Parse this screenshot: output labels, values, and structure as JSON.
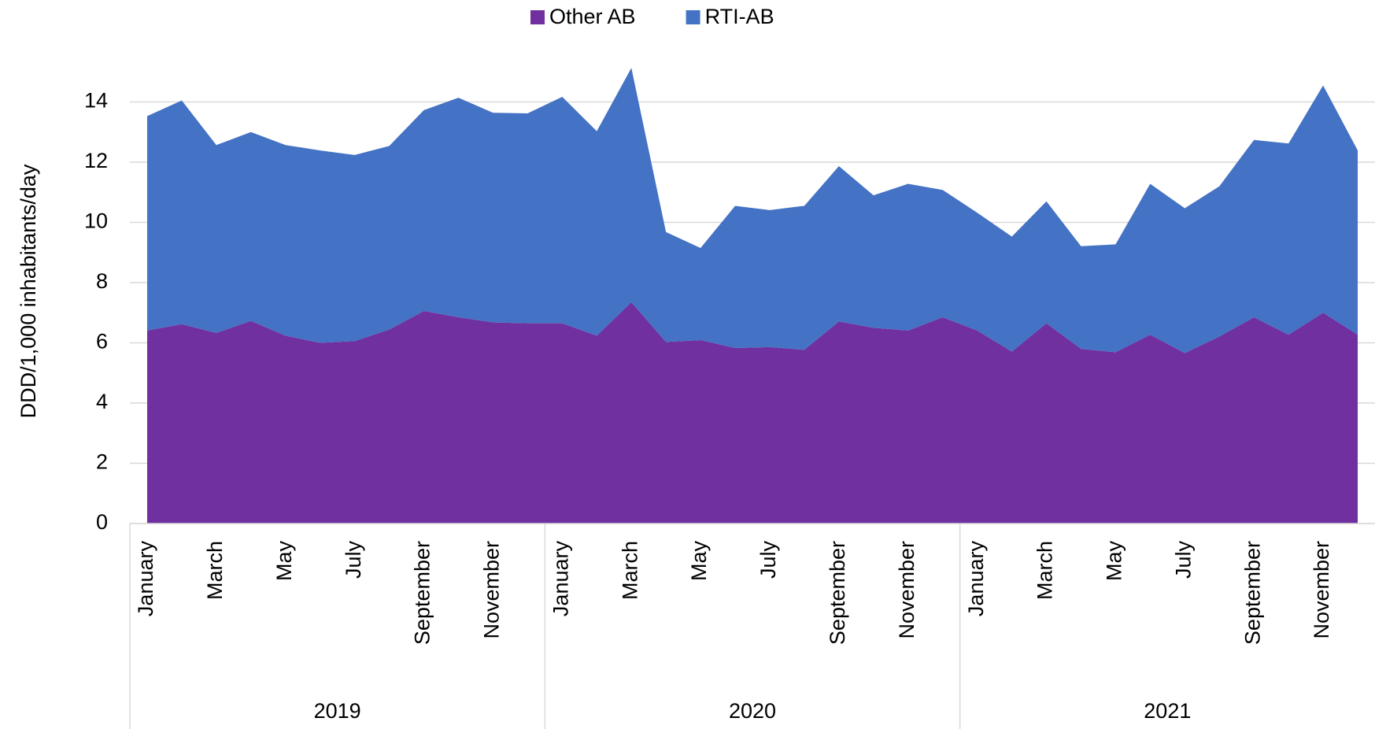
{
  "chart_data": {
    "type": "area",
    "y_label": "DDD/1,000 inhabitants/day",
    "categories": [
      "January",
      null,
      "March",
      null,
      "May",
      null,
      "July",
      null,
      "September",
      null,
      "November",
      null,
      "January",
      null,
      "March",
      null,
      "May",
      null,
      "July",
      null,
      "September",
      null,
      "November",
      null,
      "January",
      null,
      "March",
      null,
      "May",
      null,
      "July",
      null,
      "September",
      null,
      "November",
      null
    ],
    "x_groups": [
      "2019",
      "2020",
      "2021"
    ],
    "series": [
      {
        "name": "Other AB",
        "color": "#7030a0",
        "values": [
          6.41,
          6.62,
          6.33,
          6.73,
          6.24,
          6.0,
          6.06,
          6.44,
          7.06,
          6.85,
          6.68,
          6.65,
          6.65,
          6.24,
          7.35,
          6.03,
          6.09,
          5.83,
          5.86,
          5.77,
          6.71,
          6.5,
          6.41,
          6.85,
          6.41,
          5.71,
          6.65,
          5.8,
          5.69,
          6.27,
          5.66,
          6.21,
          6.85,
          6.27,
          7.0,
          6.27
        ]
      },
      {
        "name": "RTI-AB",
        "color": "#4472c4",
        "values": [
          7.12,
          7.43,
          6.24,
          6.27,
          6.33,
          6.39,
          6.18,
          6.1,
          6.67,
          7.29,
          6.96,
          6.97,
          7.52,
          6.79,
          7.78,
          3.65,
          3.06,
          4.72,
          4.55,
          4.78,
          5.16,
          4.4,
          4.87,
          4.23,
          3.91,
          3.82,
          4.05,
          3.41,
          3.58,
          5.01,
          4.81,
          4.99,
          5.89,
          6.35,
          7.55,
          6.12
        ]
      }
    ],
    "ylim": [
      0,
      16
    ],
    "yticks": [
      0,
      2,
      4,
      6,
      8,
      10,
      12,
      14
    ],
    "grid": true,
    "stacked": true,
    "legend": "top"
  }
}
